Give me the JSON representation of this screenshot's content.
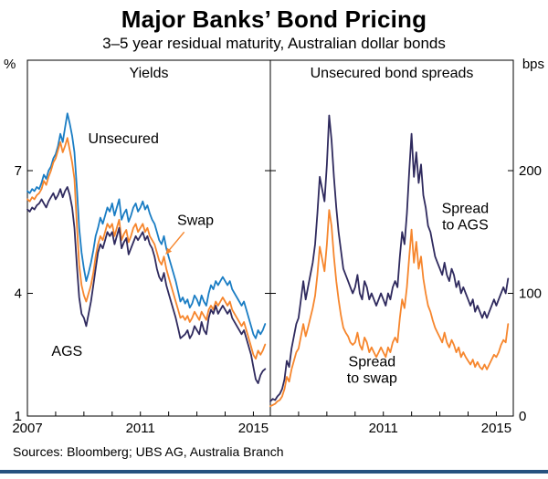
{
  "page": {
    "title": "Major Banks’ Bond Pricing",
    "subtitle": "3–5 year residual maturity, Australian dollar bonds",
    "sources": "Sources:  Bloomberg; UBS AG, Australia Branch"
  },
  "colors": {
    "unsecured_blue": "#1a7dc4",
    "swap_orange": "#f6862d",
    "ags_navy": "#2f2a5e",
    "axis_black": "#000000",
    "footer_rule_blue": "#27517f"
  },
  "chart_data": {
    "type": "line",
    "title": "Major Banks’ Bond Pricing",
    "subtitle": "3–5 year residual maturity, Australian dollar bonds",
    "x_start": 2007.0,
    "x_step": 0.08333,
    "xlim": [
      2007.0,
      2015.6
    ],
    "x_tick_labels": [
      2007,
      2011,
      2015
    ],
    "grid": false,
    "legend": "in-panel text annotations",
    "panels": [
      {
        "title": "Yields",
        "unit": "%",
        "unit_side": "left",
        "ylim": [
          1,
          9.7
        ],
        "yticks": [
          1,
          4,
          7
        ],
        "series": [
          {
            "name": "Unsecured",
            "color": "#1a7dc4",
            "values": [
              6.5,
              6.45,
              6.55,
              6.5,
              6.6,
              6.55,
              6.7,
              6.9,
              6.8,
              7.0,
              7.1,
              7.3,
              7.4,
              7.6,
              7.9,
              7.7,
              8.05,
              8.4,
              8.15,
              7.85,
              7.45,
              6.6,
              5.6,
              5.0,
              4.6,
              4.3,
              4.5,
              4.75,
              5.05,
              5.4,
              5.6,
              5.85,
              5.7,
              5.9,
              6.1,
              6.0,
              6.2,
              5.9,
              6.1,
              6.3,
              5.8,
              5.95,
              6.05,
              5.75,
              5.9,
              6.1,
              6.2,
              6.0,
              6.1,
              6.25,
              6.05,
              6.15,
              5.95,
              5.8,
              5.7,
              5.5,
              5.3,
              5.2,
              5.4,
              5.1,
              4.9,
              4.7,
              4.5,
              4.3,
              4.05,
              3.8,
              3.9,
              3.75,
              3.85,
              3.65,
              3.75,
              3.95,
              3.85,
              3.7,
              3.95,
              3.8,
              3.7,
              4.0,
              4.2,
              4.1,
              4.3,
              4.2,
              4.3,
              4.4,
              4.3,
              4.2,
              4.3,
              4.1,
              4.0,
              3.9,
              3.8,
              3.7,
              3.8,
              3.6,
              3.4,
              3.2,
              3.0,
              2.9,
              3.1,
              3.0,
              3.1,
              3.25
            ]
          },
          {
            "name": "Swap",
            "color": "#f6862d",
            "values": [
              6.3,
              6.25,
              6.35,
              6.3,
              6.4,
              6.45,
              6.55,
              6.75,
              6.65,
              6.85,
              7.0,
              7.2,
              7.3,
              7.5,
              7.7,
              7.45,
              7.6,
              7.8,
              7.5,
              7.2,
              6.8,
              5.7,
              4.7,
              4.2,
              3.95,
              3.8,
              4.0,
              4.2,
              4.5,
              4.9,
              5.2,
              5.4,
              5.3,
              5.5,
              5.7,
              5.6,
              5.7,
              5.4,
              5.6,
              5.8,
              5.3,
              5.45,
              5.55,
              5.25,
              5.4,
              5.6,
              5.7,
              5.5,
              5.6,
              5.7,
              5.5,
              5.6,
              5.4,
              5.3,
              5.2,
              5.0,
              4.8,
              4.7,
              4.9,
              4.6,
              4.4,
              4.2,
              4.0,
              3.8,
              3.6,
              3.4,
              3.45,
              3.35,
              3.45,
              3.3,
              3.4,
              3.55,
              3.45,
              3.35,
              3.55,
              3.45,
              3.35,
              3.6,
              3.7,
              3.6,
              3.8,
              3.7,
              3.8,
              3.9,
              3.8,
              3.7,
              3.8,
              3.6,
              3.5,
              3.4,
              3.3,
              3.2,
              3.3,
              3.1,
              2.9,
              2.7,
              2.5,
              2.4,
              2.6,
              2.5,
              2.6,
              2.75
            ]
          },
          {
            "name": "AGS",
            "color": "#2f2a5e",
            "values": [
              6.05,
              6.0,
              6.1,
              6.05,
              6.15,
              6.2,
              6.3,
              6.2,
              6.1,
              6.25,
              6.35,
              6.45,
              6.3,
              6.4,
              6.55,
              6.35,
              6.5,
              6.6,
              6.4,
              6.1,
              5.6,
              4.7,
              3.9,
              3.5,
              3.4,
              3.2,
              3.5,
              3.8,
              4.2,
              4.6,
              5.0,
              5.2,
              5.1,
              5.3,
              5.5,
              5.4,
              5.5,
              5.2,
              5.4,
              5.6,
              5.1,
              5.25,
              5.35,
              4.95,
              5.1,
              5.25,
              5.4,
              5.3,
              5.4,
              5.5,
              5.3,
              5.4,
              5.2,
              5.1,
              4.9,
              4.6,
              4.4,
              4.3,
              4.5,
              4.2,
              4.0,
              3.8,
              3.6,
              3.4,
              3.15,
              2.9,
              2.95,
              3.0,
              3.1,
              2.9,
              3.0,
              3.2,
              3.1,
              3.0,
              3.3,
              3.1,
              3.0,
              3.4,
              3.6,
              3.5,
              3.7,
              3.5,
              3.6,
              3.7,
              3.6,
              3.5,
              3.6,
              3.4,
              3.3,
              3.2,
              3.1,
              3.0,
              3.1,
              2.9,
              2.7,
              2.5,
              2.2,
              1.9,
              1.8,
              2.0,
              2.1,
              2.15
            ]
          }
        ],
        "annotations": [
          {
            "id": "unsecured-label",
            "lines": [
              "Unsecured"
            ],
            "x": 2010.4,
            "y": 7.8,
            "color": "#1a7dc4"
          },
          {
            "id": "swap-label",
            "lines": [
              "Swap"
            ],
            "x": 2012.95,
            "y": 5.8,
            "color": "#f6862d",
            "arrow": {
              "x1": 2012.55,
              "y1": 5.5,
              "x2": 2011.95,
              "y2": 5.0
            }
          },
          {
            "id": "ags-label",
            "lines": [
              "AGS"
            ],
            "x": 2008.4,
            "y": 2.6,
            "color": "#2f2a5e"
          }
        ]
      },
      {
        "title": "Unsecured bond spreads",
        "unit": "bps",
        "unit_side": "right",
        "ylim": [
          0,
          290
        ],
        "yticks": [
          0,
          100,
          200
        ],
        "series": [
          {
            "name": "Spread to AGS",
            "color": "#2f2a5e",
            "values": [
              12,
              14,
              13,
              16,
              18,
              22,
              30,
              45,
              40,
              55,
              65,
              75,
              80,
              95,
              110,
              95,
              105,
              115,
              125,
              140,
              165,
              195,
              185,
              175,
              205,
              245,
              225,
              195,
              170,
              150,
              135,
              120,
              115,
              110,
              105,
              100,
              105,
              115,
              100,
              95,
              110,
              105,
              95,
              100,
              95,
              90,
              95,
              100,
              95,
              90,
              100,
              95,
              105,
              110,
              105,
              130,
              150,
              140,
              165,
              200,
              230,
              195,
              215,
              190,
              205,
              180,
              170,
              155,
              150,
              140,
              130,
              125,
              120,
              115,
              125,
              115,
              110,
              120,
              115,
              105,
              110,
              100,
              105,
              100,
              95,
              90,
              95,
              85,
              90,
              85,
              80,
              85,
              80,
              85,
              90,
              95,
              90,
              95,
              100,
              105,
              100,
              112
            ]
          },
          {
            "name": "Spread to swap",
            "color": "#f6862d",
            "values": [
              8,
              9,
              10,
              12,
              13,
              16,
              22,
              32,
              28,
              38,
              45,
              52,
              55,
              65,
              75,
              65,
              72,
              80,
              88,
              98,
              115,
              138,
              128,
              118,
              140,
              168,
              155,
              130,
              110,
              95,
              82,
              72,
              68,
              65,
              60,
              58,
              60,
              68,
              58,
              54,
              64,
              60,
              52,
              56,
              52,
              48,
              52,
              56,
              52,
              48,
              56,
              52,
              60,
              64,
              60,
              80,
              95,
              88,
              105,
              130,
              152,
              125,
              142,
              120,
              130,
              112,
              100,
              90,
              85,
              78,
              72,
              68,
              64,
              60,
              68,
              60,
              56,
              62,
              58,
              52,
              56,
              48,
              52,
              48,
              45,
              42,
              46,
              40,
              44,
              40,
              38,
              42,
              38,
              42,
              46,
              50,
              48,
              52,
              58,
              62,
              60,
              75
            ]
          }
        ],
        "annotations": [
          {
            "id": "spread-to-ags-label",
            "lines": [
              "Spread",
              "to AGS"
            ],
            "x": 2013.9,
            "y": 163,
            "color": "#2f2a5e"
          },
          {
            "id": "spread-to-swap-label",
            "lines": [
              "Spread",
              "to swap"
            ],
            "x": 2010.6,
            "y": 38,
            "color": "#f6862d"
          }
        ]
      }
    ]
  }
}
